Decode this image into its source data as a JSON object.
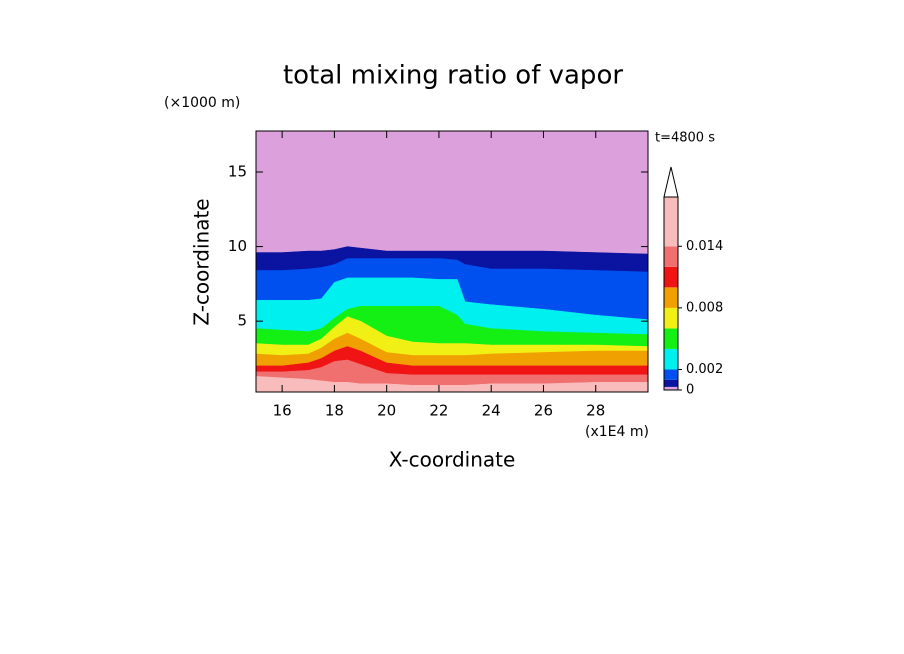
{
  "chart_data": {
    "type": "contour",
    "title": "total mixing ratio of vapor",
    "y_unit": "(×1000 m)",
    "x_unit": "(x1E4 m)",
    "xlabel": "X-coordinate",
    "ylabel": "Z-coordinate",
    "annotation": "t=4800 s",
    "xlim": [
      15,
      30
    ],
    "ylim": [
      0.25,
      17.75
    ],
    "xticks": [
      16,
      18,
      20,
      22,
      24,
      26,
      28
    ],
    "yticks": [
      5,
      10,
      15
    ],
    "x": [
      15,
      16,
      17,
      17.5,
      18,
      18.5,
      19,
      20,
      21,
      22,
      22.7,
      23,
      24,
      26,
      28,
      30
    ],
    "levels": [
      0,
      0.0003,
      0.001,
      0.002,
      0.004,
      0.006,
      0.008,
      0.01,
      0.012,
      0.014,
      0.0188
    ],
    "colors": [
      "#dca0dc",
      "#0a14a0",
      "#0050f0",
      "#00f0f0",
      "#14f014",
      "#f0f014",
      "#f0a000",
      "#f01414",
      "#f07070",
      "#f8bcbc"
    ],
    "contours": [
      [
        9.6,
        9.6,
        9.7,
        9.7,
        9.8,
        10.0,
        9.9,
        9.7,
        9.7,
        9.7,
        9.7,
        9.7,
        9.7,
        9.7,
        9.6,
        9.5
      ],
      [
        8.4,
        8.4,
        8.5,
        8.6,
        8.8,
        9.2,
        9.2,
        9.2,
        9.2,
        9.2,
        9.1,
        8.8,
        8.5,
        8.5,
        8.4,
        8.3
      ],
      [
        6.4,
        6.4,
        6.4,
        6.5,
        7.6,
        7.9,
        7.9,
        7.9,
        7.9,
        7.8,
        7.8,
        6.3,
        6.1,
        5.8,
        5.4,
        5.1
      ],
      [
        4.5,
        4.4,
        4.3,
        4.5,
        5.2,
        5.8,
        6.0,
        6.0,
        6.0,
        6.0,
        5.4,
        4.8,
        4.5,
        4.3,
        4.2,
        4.1
      ],
      [
        3.5,
        3.4,
        3.4,
        3.8,
        4.6,
        5.3,
        5.0,
        4.0,
        3.6,
        3.5,
        3.5,
        3.5,
        3.4,
        3.4,
        3.4,
        3.3
      ],
      [
        2.8,
        2.7,
        2.8,
        3.2,
        3.8,
        4.2,
        3.8,
        2.9,
        2.7,
        2.7,
        2.7,
        2.7,
        2.8,
        2.9,
        3.0,
        3.0
      ],
      [
        2.0,
        2.0,
        2.2,
        2.5,
        3.0,
        3.3,
        3.0,
        2.2,
        2.0,
        2.0,
        2.0,
        2.0,
        2.0,
        2.0,
        2.0,
        2.0
      ],
      [
        1.6,
        1.6,
        1.7,
        1.9,
        2.3,
        2.4,
        2.1,
        1.5,
        1.4,
        1.4,
        1.4,
        1.4,
        1.4,
        1.4,
        1.4,
        1.4
      ],
      [
        1.3,
        1.2,
        1.1,
        1.0,
        0.9,
        0.9,
        0.8,
        0.8,
        0.7,
        0.7,
        0.7,
        0.7,
        0.8,
        0.8,
        0.9,
        0.9
      ]
    ],
    "cbar_ticks": [
      0,
      0.002,
      0.008,
      0.014
    ]
  }
}
